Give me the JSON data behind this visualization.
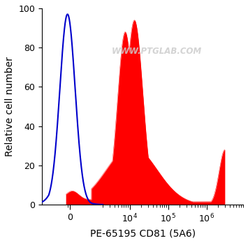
{
  "xlabel": "PE-65195 CD81 (5A6)",
  "ylabel": "Relative cell number",
  "watermark": "WWW.PTGLAB.COM",
  "ylim": [
    0,
    100
  ],
  "background_color": "#ffffff",
  "blue_color": "#0000cc",
  "red_color": "#ff0000",
  "tick_label_size": 9,
  "label_fontsize": 10,
  "linthresh": 1000,
  "linscale": 0.5
}
